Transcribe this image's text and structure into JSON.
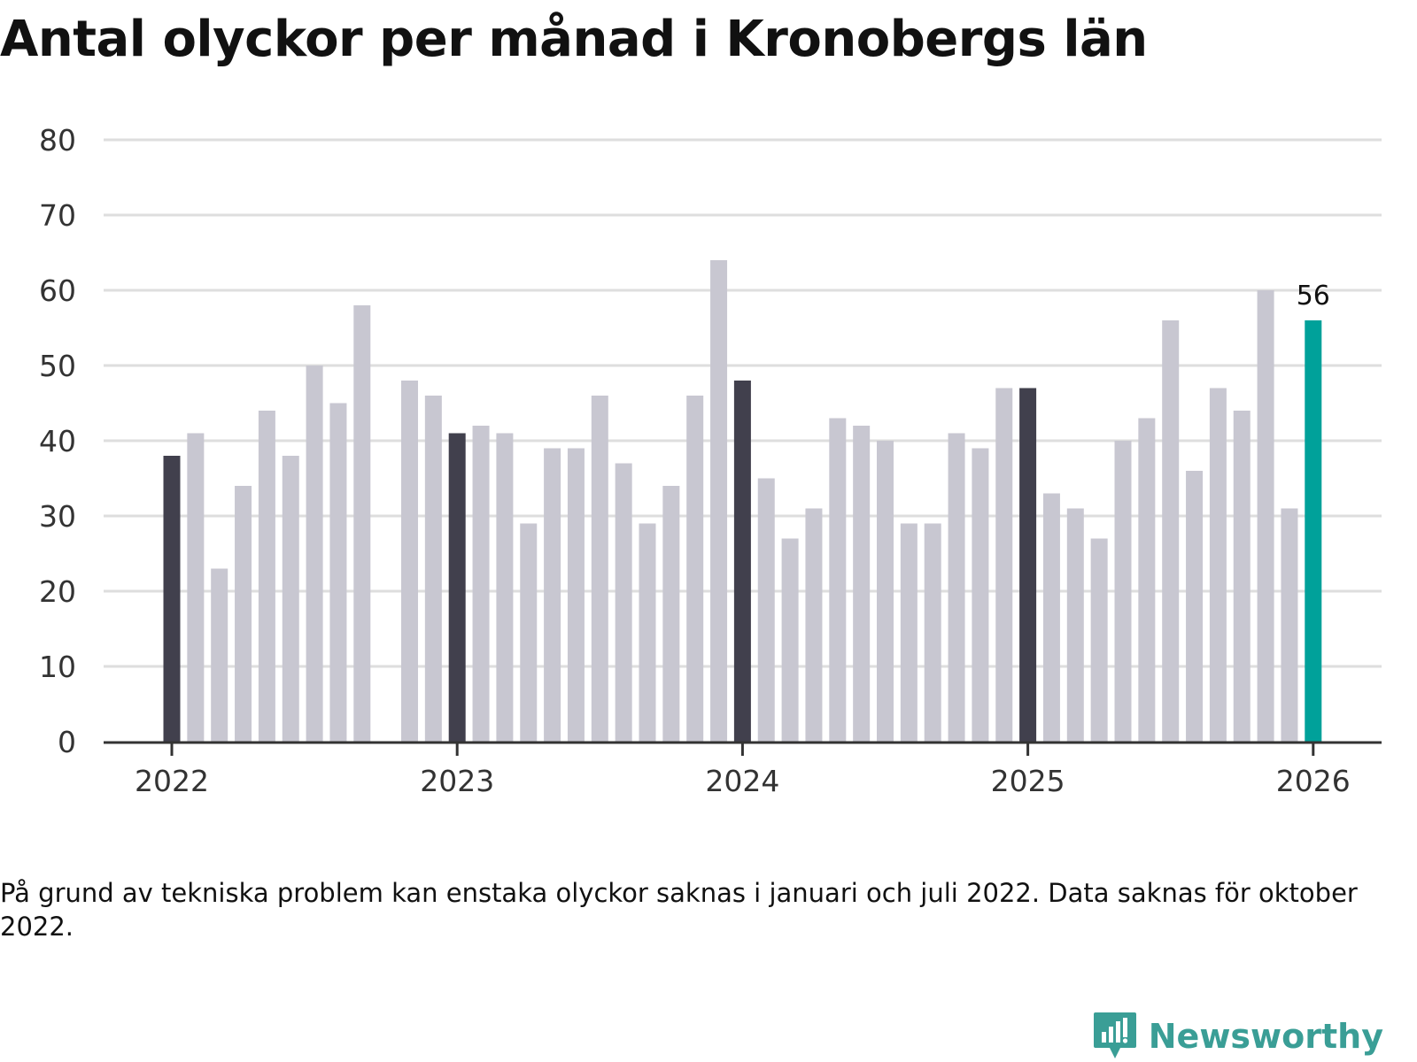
{
  "title": "Antal olyckor per månad i Kronobergs län",
  "footnote": "På grund av tekniska problem kan enstaka olyckor saknas i januari och juli 2022. Data saknas för oktober 2022.",
  "brand": {
    "name": "Newsworthy",
    "icon": "newsworthy-logo-icon",
    "color": "#3a9e96"
  },
  "colors": {
    "regular": "#c8c7d1",
    "january": "#41404d",
    "latest": "#00a19a",
    "grid": "#dedede",
    "axis": "#333333"
  },
  "chart_data": {
    "type": "bar",
    "title": "Antal olyckor per månad i Kronobergs län",
    "xlabel": "",
    "ylabel": "",
    "ylim": [
      0,
      80
    ],
    "yticks": [
      0,
      10,
      20,
      30,
      40,
      50,
      60,
      70,
      80
    ],
    "xticks": [
      "2022",
      "2023",
      "2024",
      "2025",
      "2026"
    ],
    "grid": true,
    "highlight_label": "56",
    "categories": [
      "2022-01",
      "2022-02",
      "2022-03",
      "2022-04",
      "2022-05",
      "2022-06",
      "2022-07",
      "2022-08",
      "2022-09",
      "2022-10",
      "2022-11",
      "2022-12",
      "2023-01",
      "2023-02",
      "2023-03",
      "2023-04",
      "2023-05",
      "2023-06",
      "2023-07",
      "2023-08",
      "2023-09",
      "2023-10",
      "2023-11",
      "2023-12",
      "2024-01",
      "2024-02",
      "2024-03",
      "2024-04",
      "2024-05",
      "2024-06",
      "2024-07",
      "2024-08",
      "2024-09",
      "2024-10",
      "2024-11",
      "2024-12",
      "2025-01",
      "2025-02",
      "2025-03",
      "2025-04",
      "2025-05",
      "2025-06",
      "2025-07",
      "2025-08",
      "2025-09",
      "2025-10",
      "2025-11",
      "2025-12",
      "2026-01"
    ],
    "values": [
      38,
      41,
      23,
      34,
      44,
      38,
      50,
      45,
      58,
      null,
      48,
      46,
      41,
      42,
      41,
      29,
      39,
      39,
      46,
      37,
      29,
      34,
      46,
      64,
      48,
      35,
      27,
      31,
      43,
      42,
      40,
      29,
      29,
      41,
      39,
      47,
      47,
      33,
      31,
      27,
      40,
      43,
      56,
      36,
      47,
      44,
      60,
      31,
      56
    ]
  }
}
